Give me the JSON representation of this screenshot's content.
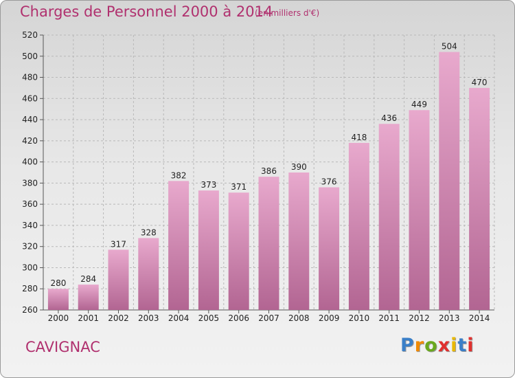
{
  "header": {
    "title": "Charges de Personnel 2000 à 2014",
    "unit": "(en milliers d'€)"
  },
  "footer": {
    "commune": "CAVIGNAC",
    "logo_letters": [
      "P",
      "r",
      "o",
      "x",
      "i",
      "t",
      "i"
    ],
    "logo_colors": [
      "#3a7fc8",
      "#f08a00",
      "#6aa81e",
      "#e0302e",
      "#e8b800",
      "#3a7fc8",
      "#e0302e"
    ]
  },
  "colors": {
    "accent": "#b0306e",
    "bar_top": "#e8a9cd",
    "bar_bottom": "#b26592",
    "grid": "#b8b8b8"
  },
  "chart_data": {
    "type": "bar",
    "title": "Charges de Personnel 2000 à 2014",
    "xlabel": "",
    "ylabel": "",
    "categories": [
      "2000",
      "2001",
      "2002",
      "2003",
      "2004",
      "2005",
      "2006",
      "2007",
      "2008",
      "2009",
      "2010",
      "2011",
      "2012",
      "2013",
      "2014"
    ],
    "values": [
      280,
      284,
      317,
      328,
      382,
      373,
      371,
      386,
      390,
      376,
      418,
      436,
      449,
      504,
      470
    ],
    "ylim": [
      260,
      520
    ],
    "yticks": [
      260,
      280,
      300,
      320,
      340,
      360,
      380,
      400,
      420,
      440,
      460,
      480,
      500,
      520
    ],
    "grid": true,
    "legend": "none"
  }
}
